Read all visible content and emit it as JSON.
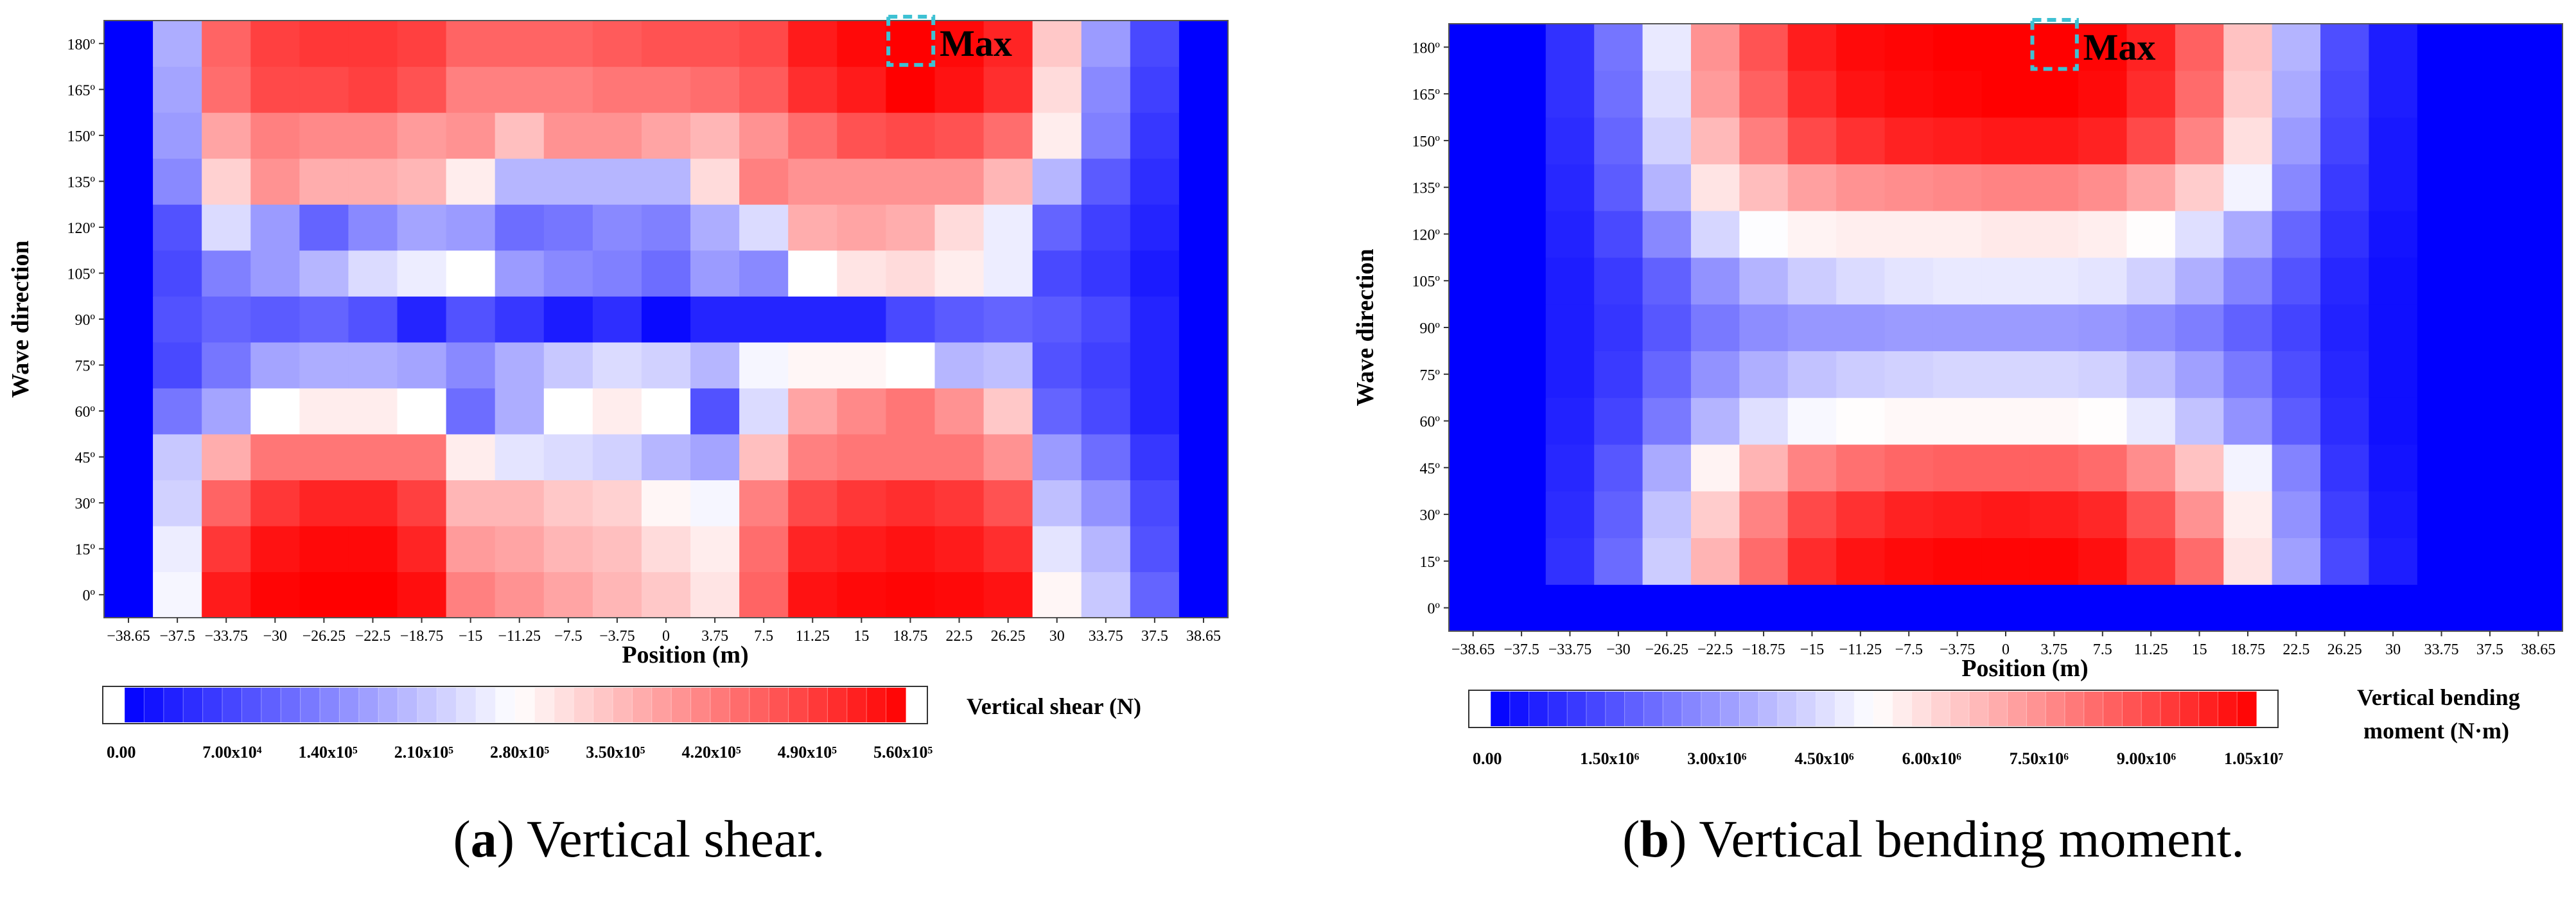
{
  "colors": {
    "low": "#0000ff",
    "mid": "#ffffff",
    "high": "#ff0000",
    "max_box": "#3ec1d3"
  },
  "chart_data": [
    {
      "type": "heatmap",
      "title": "",
      "caption_letter": "a",
      "caption_text": "Vertical shear.",
      "xlabel": "Position (m)",
      "ylabel": "Wave direction",
      "x_ticks": [
        "−38.65",
        "−37.5",
        "−33.75",
        "−30",
        "−26.25",
        "−22.5",
        "−18.75",
        "−15",
        "−11.25",
        "−7.5",
        "−3.75",
        "0",
        "3.75",
        "7.5",
        "11.25",
        "15",
        "18.75",
        "22.5",
        "26.25",
        "30",
        "33.75",
        "37.5",
        "38.65"
      ],
      "y_ticks": [
        "0º",
        "15º",
        "30º",
        "45º",
        "60º",
        "75º",
        "90º",
        "105º",
        "120º",
        "135º",
        "150º",
        "165º",
        "180º"
      ],
      "colorbar_label": "Vertical shear (N)",
      "colorbar_ticks": [
        "0.00",
        "7.00x10⁴",
        "1.40x10⁵",
        "2.10x10⁵",
        "2.80x10⁵",
        "3.50x10⁵",
        "4.20x10⁵",
        "4.90x10⁵",
        "5.60x10⁵"
      ],
      "vmin": 0,
      "vmax": 560000,
      "max_label": "Max",
      "max_cell": {
        "row": 12,
        "col": 16
      },
      "rows_note": "rows from 0º (first) to 180º (last); columns from −38.65 to 38.65",
      "values": [
        [
          0,
          270000,
          530000,
          555000,
          560000,
          560000,
          545000,
          420000,
          400000,
          380000,
          360000,
          340000,
          310000,
          450000,
          540000,
          550000,
          555000,
          550000,
          540000,
          290000,
          220000,
          110000,
          0
        ],
        [
          0,
          260000,
          500000,
          540000,
          550000,
          550000,
          520000,
          390000,
          380000,
          360000,
          350000,
          320000,
          300000,
          440000,
          520000,
          530000,
          540000,
          530000,
          510000,
          250000,
          200000,
          90000,
          0
        ],
        [
          0,
          230000,
          450000,
          500000,
          520000,
          520000,
          490000,
          360000,
          360000,
          340000,
          330000,
          290000,
          270000,
          420000,
          480000,
          500000,
          510000,
          500000,
          470000,
          210000,
          160000,
          80000,
          0
        ],
        [
          0,
          220000,
          370000,
          430000,
          430000,
          430000,
          430000,
          300000,
          250000,
          240000,
          230000,
          200000,
          180000,
          350000,
          420000,
          430000,
          430000,
          430000,
          400000,
          170000,
          120000,
          60000,
          0
        ],
        [
          0,
          130000,
          180000,
          280000,
          300000,
          300000,
          280000,
          120000,
          190000,
          280000,
          300000,
          280000,
          90000,
          240000,
          380000,
          410000,
          430000,
          400000,
          340000,
          110000,
          80000,
          40000,
          0
        ],
        [
          0,
          80000,
          130000,
          180000,
          190000,
          190000,
          180000,
          150000,
          190000,
          220000,
          240000,
          230000,
          200000,
          270000,
          290000,
          290000,
          280000,
          200000,
          210000,
          90000,
          70000,
          40000,
          0
        ],
        [
          0,
          90000,
          110000,
          100000,
          110000,
          90000,
          40000,
          90000,
          60000,
          30000,
          50000,
          10000,
          40000,
          40000,
          40000,
          40000,
          80000,
          100000,
          110000,
          100000,
          80000,
          40000,
          0
        ],
        [
          0,
          80000,
          140000,
          170000,
          200000,
          240000,
          260000,
          280000,
          170000,
          150000,
          140000,
          120000,
          170000,
          150000,
          280000,
          310000,
          320000,
          300000,
          260000,
          80000,
          60000,
          30000,
          0
        ],
        [
          0,
          90000,
          240000,
          170000,
          110000,
          150000,
          180000,
          170000,
          120000,
          130000,
          150000,
          140000,
          190000,
          240000,
          370000,
          380000,
          370000,
          320000,
          260000,
          110000,
          70000,
          40000,
          0
        ],
        [
          0,
          150000,
          330000,
          400000,
          370000,
          370000,
          360000,
          300000,
          200000,
          200000,
          200000,
          200000,
          320000,
          420000,
          400000,
          400000,
          400000,
          400000,
          360000,
          200000,
          100000,
          50000,
          0
        ],
        [
          0,
          170000,
          380000,
          420000,
          410000,
          410000,
          390000,
          400000,
          350000,
          400000,
          400000,
          380000,
          360000,
          400000,
          440000,
          470000,
          480000,
          470000,
          440000,
          300000,
          140000,
          60000,
          0
        ],
        [
          0,
          180000,
          440000,
          480000,
          480000,
          490000,
          470000,
          420000,
          420000,
          420000,
          430000,
          430000,
          440000,
          460000,
          510000,
          530000,
          560000,
          540000,
          510000,
          320000,
          150000,
          70000,
          0
        ],
        [
          0,
          190000,
          450000,
          490000,
          500000,
          500000,
          490000,
          450000,
          450000,
          450000,
          460000,
          470000,
          470000,
          480000,
          530000,
          550000,
          560000,
          550000,
          520000,
          340000,
          170000,
          80000,
          0
        ]
      ]
    },
    {
      "type": "heatmap",
      "title": "",
      "caption_letter": "b",
      "caption_text": "Vertical bending moment.",
      "xlabel": "Position (m)",
      "ylabel": "Wave direction",
      "x_ticks": [
        "−38.65",
        "−37.5",
        "−33.75",
        "−30",
        "−26.25",
        "−22.5",
        "−18.75",
        "−15",
        "−11.25",
        "−7.5",
        "−3.75",
        "0",
        "3.75",
        "7.5",
        "11.25",
        "15",
        "18.75",
        "22.5",
        "26.25",
        "30",
        "33.75",
        "37.5",
        "38.65"
      ],
      "y_ticks": [
        "0º",
        "15º",
        "30º",
        "45º",
        "60º",
        "75º",
        "90º",
        "105º",
        "120º",
        "135º",
        "150º",
        "165º",
        "180º"
      ],
      "colorbar_label_lines": [
        "Vertical bending",
        "moment (N·m)"
      ],
      "colorbar_ticks": [
        "0.00",
        "1.50x10⁶",
        "3.00x10⁶",
        "4.50x10⁶",
        "6.00x10⁶",
        "7.50x10⁶",
        "9.00x10⁶",
        "1.05x10⁷"
      ],
      "vmin": 0,
      "vmax": 10500000,
      "max_label": "Max",
      "max_cell": {
        "row": 12,
        "col": 12
      },
      "values": [
        [
          0,
          0,
          0,
          0,
          0,
          0,
          0,
          0,
          0,
          0,
          0,
          0,
          0,
          0,
          0,
          0,
          0,
          0,
          0,
          0,
          0,
          0,
          0
        ],
        [
          0,
          0,
          1000000,
          2200000,
          4200000,
          6800000,
          8300000,
          9600000,
          10100000,
          10300000,
          10400000,
          10400000,
          10400000,
          10200000,
          9400000,
          8300000,
          5800000,
          3300000,
          1500000,
          600000,
          0,
          0,
          0
        ],
        [
          0,
          0,
          900000,
          2000000,
          4000000,
          6300000,
          7800000,
          9000000,
          9500000,
          9800000,
          9900000,
          10000000,
          9900000,
          9700000,
          8800000,
          7500000,
          5600000,
          3000000,
          1300000,
          500000,
          0,
          0,
          0
        ],
        [
          0,
          0,
          800000,
          1800000,
          3500000,
          5500000,
          6800000,
          7800000,
          8200000,
          8400000,
          8500000,
          8500000,
          8500000,
          8300000,
          7600000,
          6500000,
          5000000,
          2700000,
          1100000,
          400000,
          0,
          0,
          0
        ],
        [
          0,
          0,
          700000,
          1400000,
          2500000,
          3700000,
          4600000,
          5100000,
          5300000,
          5400000,
          5400000,
          5400000,
          5400000,
          5300000,
          4800000,
          4000000,
          3000000,
          1900000,
          900000,
          300000,
          0,
          0,
          0
        ],
        [
          0,
          0,
          600000,
          1200000,
          2100000,
          3000000,
          3600000,
          4000000,
          4200000,
          4300000,
          4400000,
          4400000,
          4400000,
          4300000,
          3900000,
          3300000,
          2500000,
          1600000,
          800000,
          300000,
          0,
          0,
          0
        ],
        [
          0,
          0,
          600000,
          1100000,
          1800000,
          2500000,
          2900000,
          3100000,
          3100000,
          3200000,
          3200000,
          3200000,
          3200000,
          3100000,
          2900000,
          2600000,
          2000000,
          1400000,
          700000,
          300000,
          0,
          0,
          0
        ],
        [
          0,
          0,
          600000,
          1200000,
          2000000,
          3000000,
          3700000,
          4200000,
          4500000,
          4700000,
          4800000,
          4800000,
          4800000,
          4700000,
          4300000,
          3600000,
          2700000,
          1700000,
          800000,
          300000,
          0,
          0,
          0
        ],
        [
          0,
          0,
          700000,
          1500000,
          2800000,
          4400000,
          5200000,
          5500000,
          5600000,
          5600000,
          5600000,
          5700000,
          5700000,
          5600000,
          5300000,
          4600000,
          3500000,
          2100000,
          1000000,
          400000,
          0,
          0,
          0
        ],
        [
          0,
          0,
          800000,
          1900000,
          3700000,
          5800000,
          6600000,
          7200000,
          7500000,
          7600000,
          7700000,
          7800000,
          7800000,
          7600000,
          7100000,
          6300000,
          5000000,
          2800000,
          1200000,
          500000,
          0,
          0,
          0
        ],
        [
          0,
          0,
          900000,
          2100000,
          4300000,
          6700000,
          7900000,
          9000000,
          9500000,
          9800000,
          9900000,
          10000000,
          10000000,
          9800000,
          9000000,
          7800000,
          5900000,
          3200000,
          1400000,
          500000,
          0,
          0,
          0
        ],
        [
          0,
          0,
          1000000,
          2300000,
          4600000,
          7300000,
          8500000,
          9600000,
          10100000,
          10300000,
          10400000,
          10500000,
          10500000,
          10300000,
          9600000,
          8300000,
          6300000,
          3500000,
          1500000,
          600000,
          0,
          0,
          0
        ],
        [
          0,
          0,
          1000000,
          2400000,
          4800000,
          7500000,
          8800000,
          9900000,
          10300000,
          10400000,
          10500000,
          10500000,
          10500000,
          10400000,
          9800000,
          8500000,
          6500000,
          3700000,
          1600000,
          600000,
          0,
          0,
          0
        ]
      ]
    }
  ]
}
